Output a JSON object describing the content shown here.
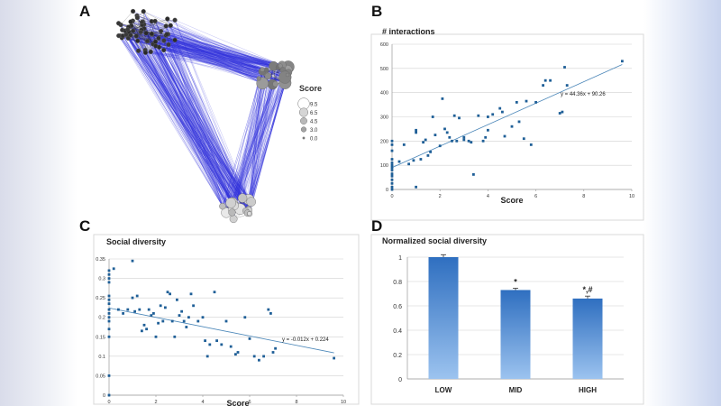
{
  "colors": {
    "edge": "#3333dd",
    "marker": "#1f5f97",
    "trend": "#4a86b8",
    "bar_top": "#2f6fc0",
    "bar_bottom": "#9cc3ef",
    "grid": "#d0d0d0"
  },
  "panel_labels": {
    "a": "A",
    "b": "B",
    "c": "C",
    "d": "D"
  },
  "network": {
    "legend_title": "Score",
    "legend_items": [
      {
        "label": "9.5",
        "score": 9.5
      },
      {
        "label": "6.5",
        "score": 6.5
      },
      {
        "label": "4.5",
        "score": 4.5
      },
      {
        "label": "3.0",
        "score": 3.0
      },
      {
        "label": "0.0",
        "score": 0.0
      }
    ]
  },
  "chart_data": [
    {
      "id": "B",
      "type": "scatter",
      "title": "# interactions",
      "xlabel": "Score",
      "ylabel": "",
      "xlim": [
        0,
        10
      ],
      "ylim": [
        0,
        600
      ],
      "xticks": [
        "0",
        "2",
        "4",
        "6",
        "8",
        "10"
      ],
      "yticks": [
        "0",
        "100",
        "200",
        "300",
        "400",
        "500",
        "600"
      ],
      "trendline": {
        "slope": 44.36,
        "intercept": 90.26,
        "x_range": [
          0,
          9.6
        ],
        "label": "y = 44.36x + 90.26"
      },
      "points": [
        [
          0,
          0
        ],
        [
          0,
          10
        ],
        [
          0,
          25
        ],
        [
          0,
          40
        ],
        [
          0,
          55
        ],
        [
          0,
          65
        ],
        [
          0,
          80
        ],
        [
          0,
          90
        ],
        [
          0,
          100
        ],
        [
          0,
          110
        ],
        [
          0,
          125
        ],
        [
          0,
          160
        ],
        [
          0,
          185
        ],
        [
          0,
          200
        ],
        [
          0.3,
          115
        ],
        [
          0.5,
          185
        ],
        [
          0.7,
          105
        ],
        [
          0.9,
          120
        ],
        [
          1,
          10
        ],
        [
          1,
          235
        ],
        [
          1,
          245
        ],
        [
          1.2,
          125
        ],
        [
          1.3,
          195
        ],
        [
          1.4,
          205
        ],
        [
          1.5,
          140
        ],
        [
          1.6,
          155
        ],
        [
          1.7,
          300
        ],
        [
          1.8,
          225
        ],
        [
          2,
          180
        ],
        [
          2.1,
          375
        ],
        [
          2.2,
          250
        ],
        [
          2.3,
          235
        ],
        [
          2.4,
          215
        ],
        [
          2.5,
          200
        ],
        [
          2.6,
          305
        ],
        [
          2.7,
          200
        ],
        [
          2.8,
          295
        ],
        [
          3,
          215
        ],
        [
          3,
          205
        ],
        [
          3.2,
          200
        ],
        [
          3.3,
          195
        ],
        [
          3.4,
          62
        ],
        [
          3.6,
          305
        ],
        [
          3.8,
          200
        ],
        [
          3.9,
          215
        ],
        [
          4,
          245
        ],
        [
          4,
          300
        ],
        [
          4.2,
          310
        ],
        [
          4.5,
          335
        ],
        [
          4.6,
          320
        ],
        [
          4.7,
          220
        ],
        [
          5,
          260
        ],
        [
          5.2,
          360
        ],
        [
          5.3,
          280
        ],
        [
          5.5,
          210
        ],
        [
          5.6,
          365
        ],
        [
          5.8,
          185
        ],
        [
          6,
          360
        ],
        [
          6.3,
          430
        ],
        [
          6.4,
          450
        ],
        [
          6.6,
          450
        ],
        [
          7,
          315
        ],
        [
          7.1,
          320
        ],
        [
          7.2,
          505
        ],
        [
          7.3,
          430
        ],
        [
          9.6,
          530
        ]
      ]
    },
    {
      "id": "C",
      "type": "scatter",
      "title": "Social diversity",
      "xlabel": "Score",
      "ylabel": "",
      "xlim": [
        0,
        10
      ],
      "ylim": [
        0,
        0.35
      ],
      "xticks": [
        "0",
        "2",
        "4",
        "6",
        "8",
        "10"
      ],
      "yticks": [
        "0",
        "0.05",
        "0.1",
        "0.15",
        "0.2",
        "0.25",
        "0.3",
        "0.35"
      ],
      "trendline": {
        "slope": -0.012,
        "intercept": 0.224,
        "x_range": [
          0,
          9.6
        ],
        "label": "y = -0.012x + 0.224"
      },
      "points": [
        [
          0,
          0
        ],
        [
          0,
          0.05
        ],
        [
          0,
          0.15
        ],
        [
          0,
          0.17
        ],
        [
          0,
          0.19
        ],
        [
          0,
          0.2
        ],
        [
          0,
          0.21
        ],
        [
          0,
          0.22
        ],
        [
          0,
          0.235
        ],
        [
          0,
          0.245
        ],
        [
          0,
          0.255
        ],
        [
          0,
          0.29
        ],
        [
          0,
          0.3
        ],
        [
          0,
          0.31
        ],
        [
          0,
          0.32
        ],
        [
          0.2,
          0.325
        ],
        [
          0.4,
          0.22
        ],
        [
          0.6,
          0.21
        ],
        [
          0.8,
          0.22
        ],
        [
          1,
          0.345
        ],
        [
          1,
          0.25
        ],
        [
          1.1,
          0.215
        ],
        [
          1.2,
          0.255
        ],
        [
          1.3,
          0.22
        ],
        [
          1.4,
          0.165
        ],
        [
          1.5,
          0.18
        ],
        [
          1.6,
          0.17
        ],
        [
          1.7,
          0.22
        ],
        [
          1.8,
          0.205
        ],
        [
          1.9,
          0.21
        ],
        [
          2,
          0.15
        ],
        [
          2.1,
          0.185
        ],
        [
          2.2,
          0.23
        ],
        [
          2.3,
          0.19
        ],
        [
          2.4,
          0.225
        ],
        [
          2.5,
          0.265
        ],
        [
          2.6,
          0.26
        ],
        [
          2.7,
          0.19
        ],
        [
          2.8,
          0.15
        ],
        [
          2.9,
          0.245
        ],
        [
          3,
          0.205
        ],
        [
          3.1,
          0.215
        ],
        [
          3.2,
          0.19
        ],
        [
          3.3,
          0.175
        ],
        [
          3.4,
          0.2
        ],
        [
          3.5,
          0.26
        ],
        [
          3.6,
          0.23
        ],
        [
          3.8,
          0.19
        ],
        [
          4,
          0.2
        ],
        [
          4.1,
          0.14
        ],
        [
          4.2,
          0.1
        ],
        [
          4.3,
          0.13
        ],
        [
          4.5,
          0.265
        ],
        [
          4.6,
          0.14
        ],
        [
          4.8,
          0.13
        ],
        [
          5,
          0.19
        ],
        [
          5.2,
          0.125
        ],
        [
          5.4,
          0.105
        ],
        [
          5.5,
          0.11
        ],
        [
          5.8,
          0.2
        ],
        [
          6,
          0.145
        ],
        [
          6.2,
          0.1
        ],
        [
          6.4,
          0.09
        ],
        [
          6.6,
          0.1
        ],
        [
          6.8,
          0.22
        ],
        [
          6.9,
          0.21
        ],
        [
          7,
          0.11
        ],
        [
          7.1,
          0.12
        ],
        [
          9.6,
          0.095
        ]
      ]
    },
    {
      "id": "D",
      "type": "bar",
      "title": "Normalized social diversity",
      "xlabel": "",
      "ylabel": "",
      "ylim": [
        0,
        1
      ],
      "yticks": [
        "0",
        "0.2",
        "0.4",
        "0.6",
        "0.8",
        "1"
      ],
      "categories": [
        "LOW",
        "MID",
        "HIGH"
      ],
      "values": [
        1.0,
        0.73,
        0.66
      ],
      "errors": [
        0.02,
        0.015,
        0.02
      ],
      "annotations": [
        "",
        "*",
        "*,#"
      ]
    }
  ]
}
